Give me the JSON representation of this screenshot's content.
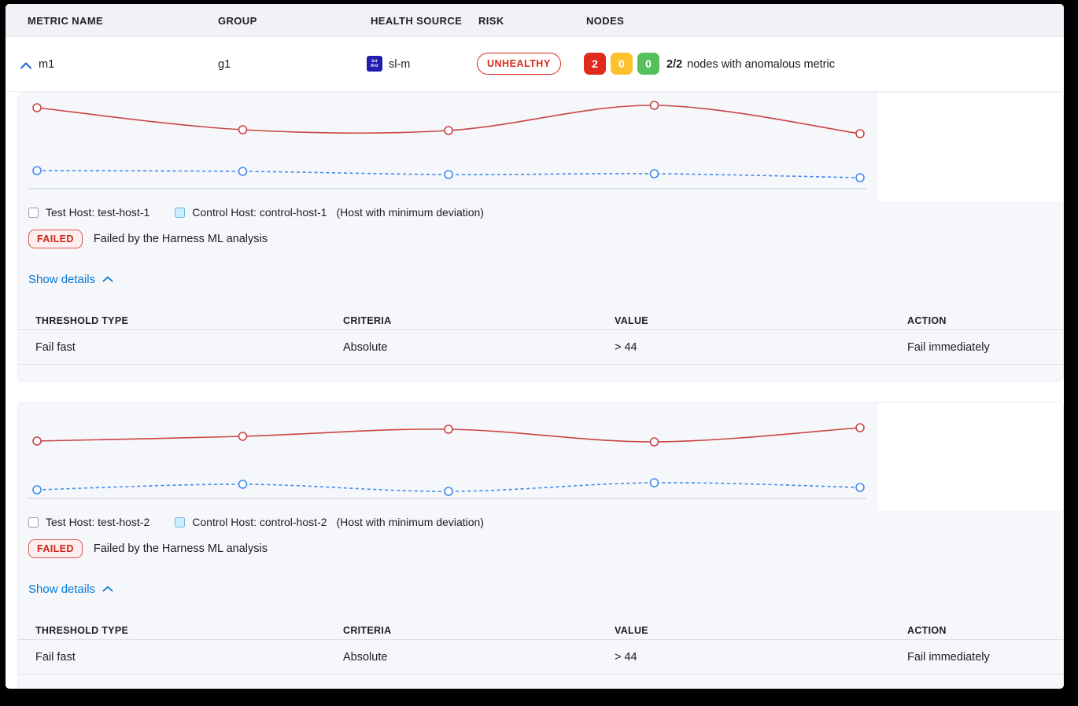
{
  "colors": {
    "accent_blue": "#0278d5",
    "risk_red": "#da291c",
    "node_red": "#e0291f",
    "node_yellow": "#fcc12b",
    "node_green": "#56c05c",
    "test_line_red": "#c94444",
    "control_line_blue": "#4189ef",
    "card_bg": "#f6f7fb",
    "header_bg": "#f0f2f7"
  },
  "header": {
    "columns": [
      "METRIC NAME",
      "GROUP",
      "HEALTH SOURCE",
      "RISK",
      "NODES"
    ]
  },
  "metric_row": {
    "name": "m1",
    "group": "g1",
    "health_source": {
      "label": "sl-m",
      "icon_lines": [
        "su",
        "mo"
      ]
    },
    "risk_label": "UNHEALTHY",
    "nodes": {
      "anomalous": "2",
      "warning": "0",
      "healthy": "0",
      "ratio": "2/2",
      "description": "nodes with anomalous metric"
    }
  },
  "panels": [
    {
      "legend": {
        "test": "Test Host: test-host-1",
        "control": "Control Host: control-host-1",
        "note": "(Host with minimum deviation)"
      },
      "status": {
        "badge": "FAILED",
        "message": "Failed by the Harness ML analysis"
      },
      "details_link": "Show details",
      "table": {
        "headers": [
          "THRESHOLD TYPE",
          "CRITERIA",
          "VALUE",
          "ACTION"
        ],
        "rows": [
          [
            "Fail fast",
            "Absolute",
            "> 44",
            "Fail immediately"
          ]
        ]
      }
    },
    {
      "legend": {
        "test": "Test Host: test-host-2",
        "control": "Control Host: control-host-2",
        "note": "(Host with minimum deviation)"
      },
      "status": {
        "badge": "FAILED",
        "message": "Failed by the Harness ML analysis"
      },
      "details_link": "Show details",
      "table": {
        "headers": [
          "THRESHOLD TYPE",
          "CRITERIA",
          "VALUE",
          "ACTION"
        ],
        "rows": [
          [
            "Fail fast",
            "Absolute",
            "> 44",
            "Fail immediately"
          ]
        ]
      }
    }
  ],
  "chart_data": [
    {
      "type": "line",
      "x": [
        1,
        2,
        3,
        4,
        5
      ],
      "series": [
        {
          "name": "Test Host: test-host-1",
          "color": "#c94444",
          "style": "solid",
          "values": [
            103,
            75,
            74,
            106,
            70
          ]
        },
        {
          "name": "Control Host: control-host-1",
          "color": "#4189ef",
          "style": "dashed",
          "values": [
            23,
            22,
            18,
            19,
            14
          ]
        }
      ],
      "title": "",
      "xlabel": "",
      "ylabel": "",
      "axes": "hidden",
      "grid": false,
      "legend_position": "bottom"
    },
    {
      "type": "line",
      "x": [
        1,
        2,
        3,
        4,
        5
      ],
      "series": [
        {
          "name": "Test Host: test-host-2",
          "color": "#c94444",
          "style": "solid",
          "values": [
            73,
            79,
            88,
            72,
            90
          ]
        },
        {
          "name": "Control Host: control-host-2",
          "color": "#4189ef",
          "style": "dashed",
          "values": [
            11,
            18,
            9,
            20,
            14
          ]
        }
      ],
      "title": "",
      "xlabel": "",
      "ylabel": "",
      "axes": "hidden",
      "grid": false,
      "legend_position": "bottom"
    }
  ]
}
